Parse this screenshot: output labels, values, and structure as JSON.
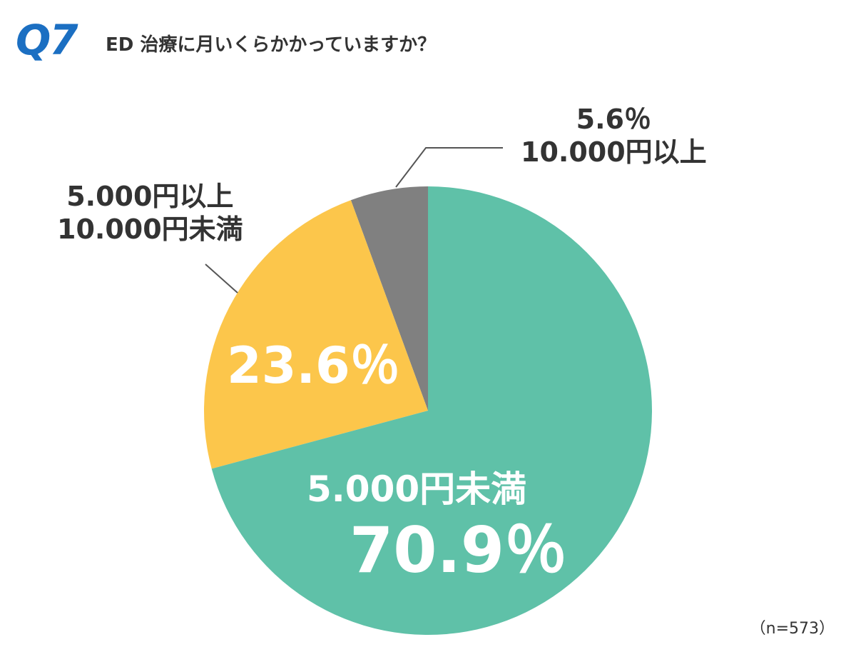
{
  "header": {
    "question_number": "Q7",
    "title": "ED 治療に月いくらかかっていますか？"
  },
  "sample_size": "（n=573）",
  "chart_data": {
    "type": "pie",
    "title": "ED 治療に月いくらかかっていますか？",
    "slices": [
      {
        "label_line1": "5.000円未満",
        "label_line2": "",
        "value": 70.9,
        "value_label": "70.9％",
        "color": "#5fc1a8"
      },
      {
        "label_line1": "5.000円以上",
        "label_line2": "10.000円未満",
        "value": 23.6,
        "value_label": "23.6％",
        "color": "#fcc64b"
      },
      {
        "label_line1": "10.000円以上",
        "label_line2": "",
        "value": 5.6,
        "value_label": "5.6％",
        "color": "#808080"
      }
    ],
    "start": "top",
    "direction": "clockwise"
  }
}
